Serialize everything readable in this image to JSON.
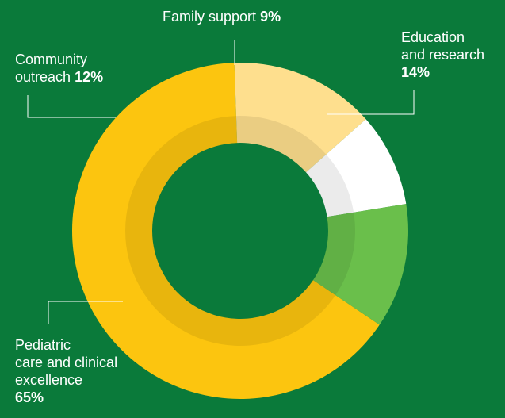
{
  "chart_data": {
    "type": "pie",
    "style": "donut",
    "categories": [
      "Pediatric care and clinical excellence",
      "Education and research",
      "Family support",
      "Community outreach"
    ],
    "values": [
      65,
      14,
      9,
      12
    ],
    "unit": "%",
    "colors": {
      "pediatric": "#fcc50f",
      "education": "#fedf8e",
      "family": "#ffffff",
      "community": "#6abf4b",
      "background": "#0a7a3a"
    },
    "labels": {
      "family": {
        "text": "Family support",
        "pct": "9%"
      },
      "education": {
        "line1": "Education",
        "line2": "and research",
        "pct": "14%"
      },
      "community": {
        "line1": "Community",
        "line2": "outreach",
        "pct": "12%"
      },
      "pediatric": {
        "line1": "Pediatric",
        "line2": "care and clinical",
        "line3": "excellence",
        "pct": "65%"
      }
    }
  }
}
